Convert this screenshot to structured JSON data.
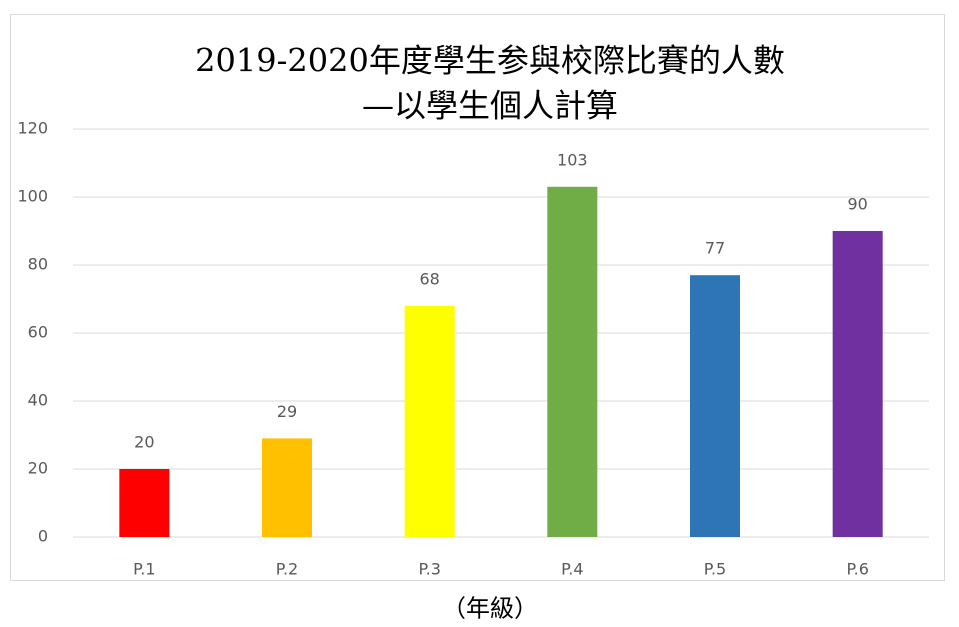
{
  "chart_data": {
    "type": "bar",
    "title": "2019-2020年度學生参與校際比賽的人數",
    "subtitle": "—以學生個人計算",
    "x_label": "（年級）",
    "categories": [
      "P.1",
      "P.2",
      "P.3",
      "P.4",
      "P.5",
      "P.6"
    ],
    "values": [
      20,
      29,
      68,
      103,
      77,
      90
    ],
    "colors": [
      "#ff0000",
      "#ffc000",
      "#ffff00",
      "#70ad47",
      "#2e75b6",
      "#7030a0"
    ],
    "ylim": [
      0,
      120
    ],
    "yticks": [
      0,
      20,
      40,
      60,
      80,
      100,
      120
    ],
    "grid": true
  }
}
